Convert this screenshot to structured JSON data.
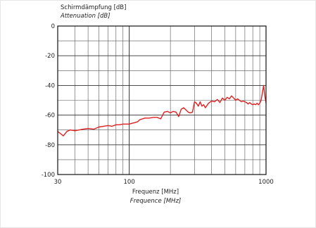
{
  "chart_data": {
    "type": "line",
    "ylabel": "Schirmdämpfung [dB]",
    "ylabel_alt": "Attenuation [dB]",
    "xlabel": "Frequenz [MHz]",
    "xlabel_alt": "Frequence [MHz]",
    "xscale": "log",
    "xlim": [
      30,
      1000
    ],
    "ylim": [
      -100,
      0
    ],
    "grid": true,
    "x_ticks": [
      30,
      100,
      1000
    ],
    "x_tick_labels": [
      "30",
      "100",
      "1000"
    ],
    "y_ticks": [
      0,
      -20,
      -40,
      -60,
      -80,
      -100
    ],
    "y_tick_labels": [
      "0",
      "-20",
      "-40",
      "-60",
      "-80",
      "-100"
    ],
    "line_color": "#e02020",
    "series": [
      {
        "x": [
          30,
          31,
          32,
          33,
          35,
          37,
          40,
          43,
          46,
          50,
          55,
          60,
          65,
          70,
          75,
          80,
          85,
          90,
          95,
          100,
          105,
          110,
          115,
          120,
          125,
          130,
          140,
          150,
          160,
          170,
          180,
          190,
          200,
          210,
          220,
          230,
          240,
          250,
          260,
          270,
          280,
          290,
          300,
          310,
          320,
          330,
          340,
          350,
          360,
          380,
          400,
          420,
          440,
          460,
          480,
          500,
          520,
          540,
          560,
          580,
          600,
          620,
          640,
          660,
          680,
          700,
          720,
          740,
          760,
          780,
          800,
          820,
          840,
          860,
          880,
          900,
          920,
          940,
          960,
          980,
          1000
        ],
        "y": [
          -71,
          -72,
          -73,
          -74,
          -71,
          -70,
          -70.5,
          -70,
          -69.5,
          -69,
          -69.5,
          -68,
          -67.5,
          -67,
          -67.5,
          -66.5,
          -66.5,
          -66,
          -66,
          -66,
          -65.5,
          -65,
          -64.5,
          -63,
          -62.5,
          -62,
          -62,
          -61.5,
          -61.5,
          -62.5,
          -58,
          -57.5,
          -58.5,
          -57.5,
          -58,
          -61,
          -56,
          -55,
          -56.5,
          -58,
          -58.5,
          -58,
          -51,
          -52,
          -54,
          -51,
          -54,
          -53,
          -55,
          -52,
          -50.5,
          -51,
          -49.5,
          -51.5,
          -48.5,
          -50,
          -48,
          -49,
          -47,
          -48.5,
          -50,
          -49,
          -50,
          -51,
          -50.5,
          -51,
          -51.5,
          -52.5,
          -51.5,
          -52.5,
          -53,
          -52.5,
          -53,
          -52,
          -53,
          -52,
          -50,
          -45,
          -40,
          -47,
          -52
        ]
      }
    ]
  }
}
